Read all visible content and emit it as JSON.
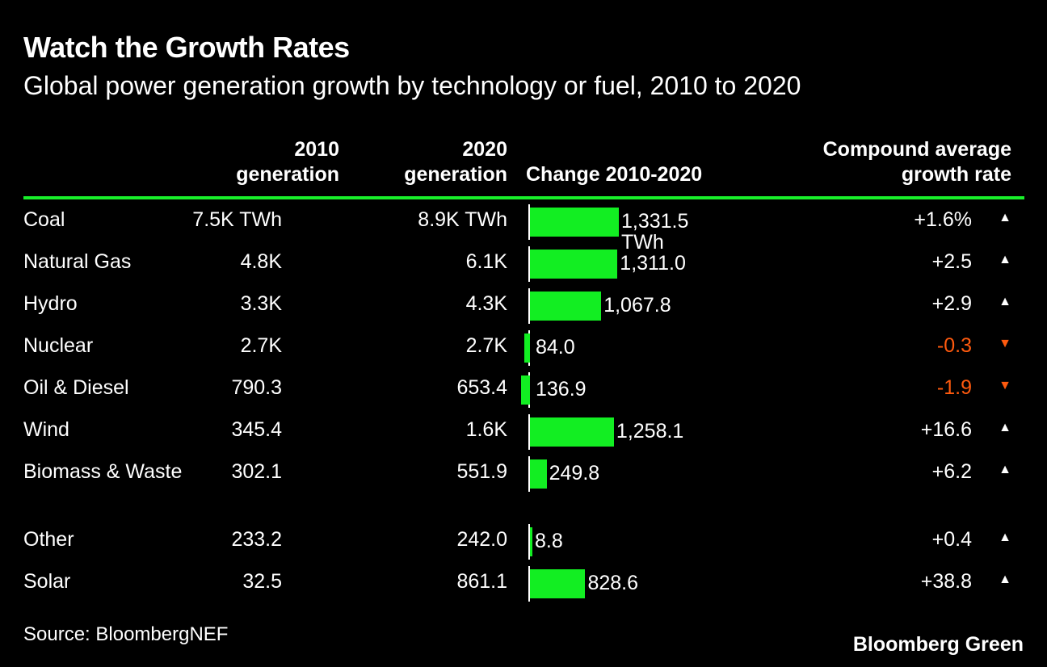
{
  "header": {
    "title": "Watch the Growth Rates",
    "subtitle": "Global power generation growth by technology or fuel, 2010 to 2020"
  },
  "columns": {
    "gen2010": [
      "2010",
      "generation"
    ],
    "gen2020": [
      "2020",
      "generation"
    ],
    "change": "Change 2010-2020",
    "cagr": [
      "Compound average",
      "growth rate"
    ]
  },
  "colors": {
    "bar": "#12ee22",
    "rule": "#18f02a",
    "negative": "#ff5a0e",
    "positive": "#ffffff"
  },
  "chart_data": {
    "type": "table",
    "title": "Watch the Growth Rates",
    "subtitle": "Global power generation growth by technology or fuel, 2010 to 2020",
    "change_unit": "TWh",
    "rows": [
      {
        "name": "Coal",
        "gen2010": "7.5K TWh",
        "gen2020": "8.9K TWh",
        "change": 1331.5,
        "change_label": "1,331.5 TWh",
        "cagr": "+1.6%",
        "direction": "up"
      },
      {
        "name": "Natural Gas",
        "gen2010": "4.8K",
        "gen2020": "6.1K",
        "change": 1311.0,
        "change_label": "1,311.0",
        "cagr": "+2.5",
        "direction": "up"
      },
      {
        "name": "Hydro",
        "gen2010": "3.3K",
        "gen2020": "4.3K",
        "change": 1067.8,
        "change_label": "1,067.8",
        "cagr": "+2.9",
        "direction": "up"
      },
      {
        "name": "Nuclear",
        "gen2010": "2.7K",
        "gen2020": "2.7K",
        "change": -84.0,
        "change_label": "84.0",
        "cagr": "-0.3",
        "direction": "down"
      },
      {
        "name": "Oil & Diesel",
        "gen2010": "790.3",
        "gen2020": "653.4",
        "change": -136.9,
        "change_label": "136.9",
        "cagr": "-1.9",
        "direction": "down"
      },
      {
        "name": "Wind",
        "gen2010": "345.4",
        "gen2020": "1.6K",
        "change": 1258.1,
        "change_label": "1,258.1",
        "cagr": "+16.6",
        "direction": "up"
      },
      {
        "name": "Biomass & Waste",
        "gen2010": "302.1",
        "gen2020": "551.9",
        "change": 249.8,
        "change_label": "249.8",
        "cagr": "+6.2",
        "direction": "up"
      },
      {
        "name": "Other",
        "gen2010": "233.2",
        "gen2020": "242.0",
        "change": 8.8,
        "change_label": "8.8",
        "cagr": "+0.4",
        "direction": "up"
      },
      {
        "name": "Solar",
        "gen2010": "32.5",
        "gen2020": "861.1",
        "change": 828.6,
        "change_label": "828.6",
        "cagr": "+38.8",
        "direction": "up"
      }
    ]
  },
  "footer": {
    "source": "Source: BloombergNEF",
    "brand": "Bloomberg Green"
  }
}
